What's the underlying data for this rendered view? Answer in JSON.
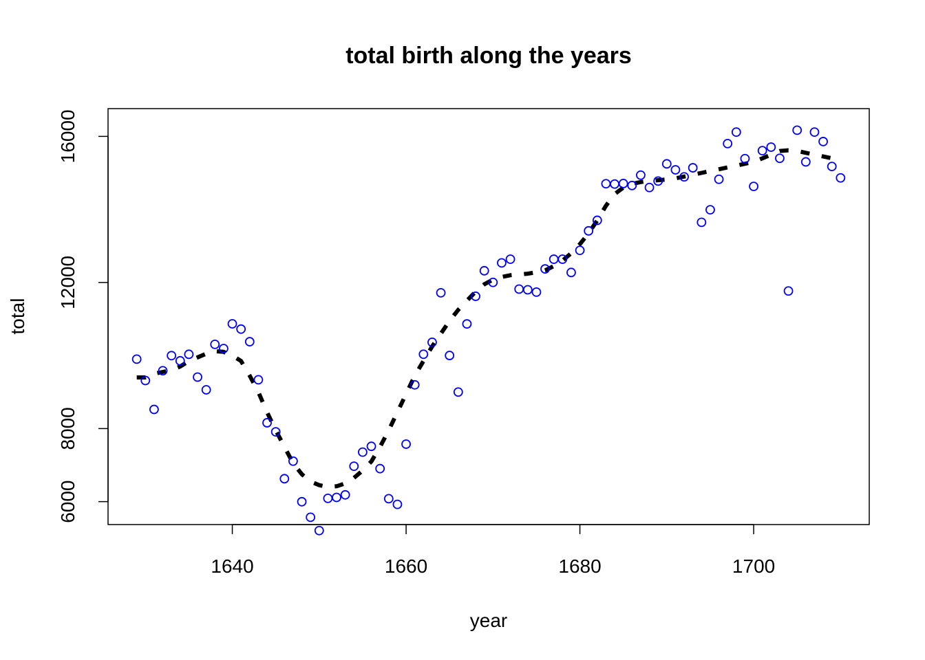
{
  "chart_data": {
    "type": "scatter",
    "title": "total birth along the years",
    "xlabel": "year",
    "ylabel": "total",
    "xlim": [
      1625.7,
      1713.3
    ],
    "ylim": [
      5372,
      16760
    ],
    "xticks": [
      1640,
      1660,
      1680,
      1700
    ],
    "yticks": [
      6000,
      8000,
      12000,
      16000
    ],
    "grid": false,
    "legend": "none",
    "colors": {
      "points": "#0000ff",
      "trend": "#000000",
      "axes": "#000000"
    },
    "series": [
      {
        "type": "scatter",
        "marker": "open-circle",
        "x": [
          1629,
          1630,
          1631,
          1632,
          1633,
          1634,
          1635,
          1636,
          1637,
          1638,
          1639,
          1640,
          1641,
          1642,
          1643,
          1644,
          1645,
          1646,
          1647,
          1648,
          1649,
          1650,
          1651,
          1652,
          1653,
          1654,
          1655,
          1656,
          1657,
          1658,
          1659,
          1660,
          1661,
          1662,
          1663,
          1664,
          1665,
          1666,
          1667,
          1668,
          1669,
          1670,
          1671,
          1672,
          1673,
          1674,
          1675,
          1676,
          1677,
          1678,
          1679,
          1680,
          1681,
          1682,
          1683,
          1684,
          1685,
          1686,
          1687,
          1688,
          1689,
          1690,
          1691,
          1692,
          1693,
          1694,
          1695,
          1696,
          1697,
          1698,
          1699,
          1700,
          1701,
          1702,
          1703,
          1704,
          1705,
          1706,
          1707,
          1708,
          1709,
          1710
        ],
        "y": [
          9901,
          9315,
          8524,
          9584,
          9997,
          9855,
          10034,
          9410,
          9062,
          10306,
          10191,
          10869,
          10724,
          10378,
          9336,
          8159,
          7911,
          6627,
          7109,
          5997,
          5572,
          5208,
          6090,
          6116,
          6185,
          6969,
          7356,
          7514,
          6903,
          6080,
          5925,
          7575,
          9198,
          10035,
          10362,
          11718,
          10001,
          9000,
          10865,
          11622,
          12321,
          12003,
          12537,
          12638,
          11819,
          11800,
          11736,
          12371,
          12637,
          12638,
          12274,
          12880,
          13413,
          13702,
          14704,
          14695,
          14709,
          14655,
          14939,
          14600,
          14777,
          15248,
          15084,
          14892,
          15140,
          13647,
          13991,
          14826,
          15802,
          16117,
          15390,
          14630,
          15609,
          15706,
          15400,
          11767,
          16170,
          15302,
          16118,
          15858,
          15176,
          14864
        ]
      },
      {
        "type": "line",
        "style": "dashed",
        "x": [
          1629,
          1630,
          1631,
          1632,
          1633,
          1634,
          1635,
          1636,
          1637,
          1638,
          1639,
          1640,
          1641,
          1642,
          1643,
          1644,
          1645,
          1646,
          1647,
          1648,
          1649,
          1650,
          1651,
          1652,
          1653,
          1654,
          1655,
          1656,
          1657,
          1658,
          1659,
          1660,
          1661,
          1662,
          1663,
          1664,
          1665,
          1666,
          1667,
          1668,
          1669,
          1670,
          1671,
          1672,
          1673,
          1674,
          1675,
          1676,
          1677,
          1678,
          1679,
          1680,
          1681,
          1682,
          1683,
          1684,
          1685,
          1686,
          1687,
          1688,
          1689,
          1690,
          1691,
          1692,
          1693,
          1694,
          1695,
          1696,
          1697,
          1698,
          1699,
          1700,
          1701,
          1702,
          1703,
          1704,
          1705,
          1706,
          1707,
          1708,
          1709,
          1710
        ],
        "y": [
          9400,
          9400,
          9500,
          9550,
          9600,
          9700,
          9850,
          9950,
          10050,
          10120,
          10100,
          10000,
          9850,
          9450,
          9000,
          8450,
          7950,
          7500,
          7050,
          6750,
          6550,
          6450,
          6400,
          6420,
          6500,
          6650,
          6850,
          7100,
          7500,
          7950,
          8450,
          8950,
          9450,
          9850,
          10250,
          10600,
          10950,
          11250,
          11500,
          11750,
          11950,
          12080,
          12150,
          12200,
          12220,
          12240,
          12280,
          12330,
          12450,
          12600,
          12800,
          13050,
          13350,
          13700,
          14100,
          14420,
          14600,
          14700,
          14750,
          14780,
          14800,
          14820,
          14850,
          14900,
          14950,
          15000,
          15050,
          15100,
          15150,
          15200,
          15250,
          15300,
          15400,
          15500,
          15600,
          15620,
          15600,
          15550,
          15500,
          15450,
          15400,
          15350
        ]
      }
    ]
  }
}
